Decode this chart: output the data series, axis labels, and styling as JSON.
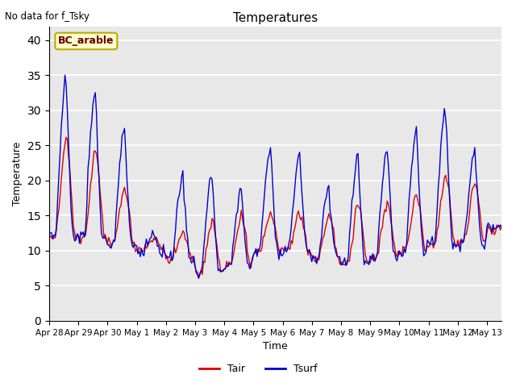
{
  "title": "Temperatures",
  "xlabel": "Time",
  "ylabel": "Temperature",
  "annotation_text": "No data for f_Tsky",
  "legend_label1": "Tair",
  "legend_label2": "Tsurf",
  "box_label": "BC_arable",
  "ylim": [
    0,
    42
  ],
  "yticks": [
    0,
    5,
    10,
    15,
    20,
    25,
    30,
    35,
    40
  ],
  "xtick_labels": [
    "Apr 28",
    "Apr 29",
    "Apr 30",
    "May 1",
    "May 2",
    "May 3",
    "May 4",
    "May 5",
    "May 6",
    "May 7",
    "May 8",
    "May 9",
    "May 10",
    "May 11",
    "May 12",
    "May 13"
  ],
  "bg_color": "#e8e8e8",
  "line_color_tair": "#dd0000",
  "line_color_tsurf": "#0000cc",
  "box_facecolor": "#ffffcc",
  "box_edgecolor": "#bbaa00"
}
